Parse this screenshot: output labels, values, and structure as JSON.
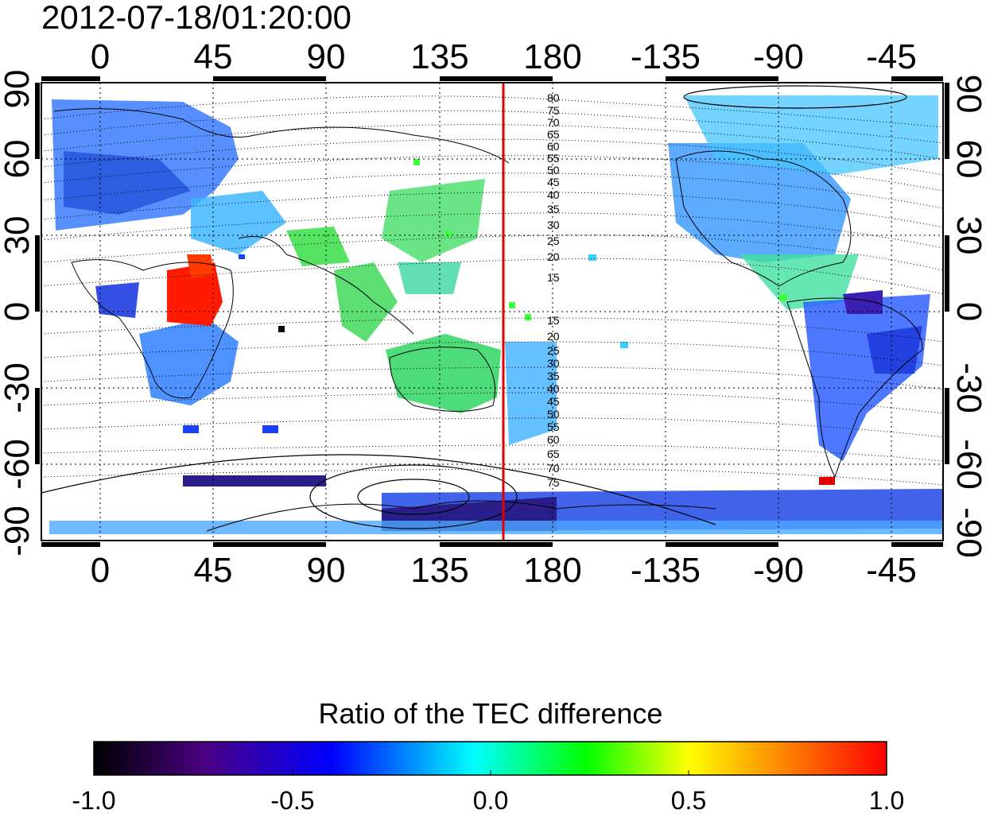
{
  "title": "2012-07-18/01:20:00",
  "map": {
    "x_ticks": [
      "0",
      "45",
      "90",
      "135",
      "180",
      "-135",
      "-90",
      "-45"
    ],
    "y_ticks": [
      "90",
      "60",
      "30",
      "0",
      "-30",
      "-60",
      "-90"
    ],
    "contour_labels_north": [
      "80",
      "75",
      "70",
      "65",
      "60",
      "55",
      "50",
      "45",
      "40",
      "35",
      "30",
      "25",
      "20",
      "15"
    ],
    "contour_labels_south": [
      "15",
      "20",
      "25",
      "30",
      "35",
      "40",
      "45",
      "50",
      "55",
      "60",
      "65",
      "70",
      "75"
    ],
    "meridian_line": {
      "longitude": 160,
      "color": "#e00000"
    },
    "grid": true
  },
  "colorbar": {
    "title": "Ratio of the TEC difference",
    "range": [
      -1.0,
      1.0
    ],
    "tick_labels": [
      "-1.0",
      "-0.5",
      "0.0",
      "0.5",
      "1.0"
    ]
  },
  "colors": {
    "frame": "#000000",
    "meridian": "#e00000",
    "colormap": [
      "#000000",
      "#4b0082",
      "#0000ff",
      "#00ffff",
      "#00ff00",
      "#ffff00",
      "#ff0000"
    ]
  }
}
